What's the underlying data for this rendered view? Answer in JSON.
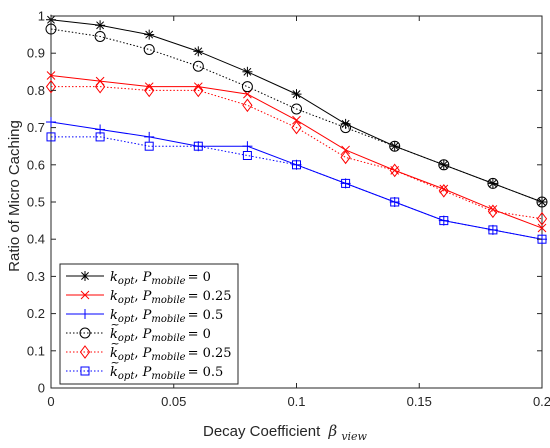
{
  "chart_data": {
    "type": "line",
    "title": "",
    "xlabel": "Decay Coefficient",
    "xlabel_symbol": "β",
    "xlabel_sub": "view",
    "ylabel": "Ratio of Micro Caching",
    "xlim": [
      0,
      0.2
    ],
    "ylim": [
      0,
      1
    ],
    "xticks": [
      0,
      0.05,
      0.1,
      0.15,
      0.2
    ],
    "xtick_labels": [
      "0",
      "0.05",
      "0.1",
      "0.15",
      "0.2"
    ],
    "yticks": [
      0,
      0.1,
      0.2,
      0.3,
      0.4,
      0.5,
      0.6,
      0.7,
      0.8,
      0.9,
      1
    ],
    "ytick_labels": [
      "0",
      "0.1",
      "0.2",
      "0.3",
      "0.4",
      "0.5",
      "0.6",
      "0.7",
      "0.8",
      "0.9",
      "1"
    ],
    "grid": false,
    "legend_position": "bottom-left",
    "x": [
      0,
      0.02,
      0.04,
      0.06,
      0.08,
      0.1,
      0.12,
      0.14,
      0.16,
      0.18,
      0.2
    ],
    "series": [
      {
        "name": "k_opt, P_mobile = 0",
        "legend_var": "k",
        "legend_tilde": false,
        "legend_p": "0",
        "color": "#000000",
        "dash": "solid",
        "marker": "asterisk",
        "values": [
          0.99,
          0.975,
          0.95,
          0.905,
          0.85,
          0.79,
          0.71,
          0.65,
          0.6,
          0.55,
          0.5
        ]
      },
      {
        "name": "k_opt, P_mobile = 0.25",
        "legend_var": "k",
        "legend_tilde": false,
        "legend_p": "0.25",
        "color": "#ff0000",
        "dash": "solid",
        "marker": "x",
        "values": [
          0.84,
          0.825,
          0.81,
          0.81,
          0.79,
          0.72,
          0.64,
          0.585,
          0.535,
          0.48,
          0.43
        ]
      },
      {
        "name": "k_opt, P_mobile = 0.5",
        "legend_var": "k",
        "legend_tilde": false,
        "legend_p": "0.5",
        "color": "#0000ff",
        "dash": "solid",
        "marker": "plus",
        "values": [
          0.715,
          0.695,
          0.675,
          0.65,
          0.65,
          0.6,
          0.55,
          0.5,
          0.45,
          0.425,
          0.4
        ]
      },
      {
        "name": "k̃_opt, P_mobile = 0",
        "legend_var": "k",
        "legend_tilde": true,
        "legend_p": "0",
        "color": "#000000",
        "dash": "dotted",
        "marker": "circle",
        "values": [
          0.965,
          0.945,
          0.91,
          0.865,
          0.81,
          0.75,
          0.7,
          0.65,
          0.6,
          0.55,
          0.5
        ]
      },
      {
        "name": "k̃_opt, P_mobile = 0.25",
        "legend_var": "k",
        "legend_tilde": true,
        "legend_p": "0.25",
        "color": "#ff0000",
        "dash": "dotted",
        "marker": "diamond",
        "values": [
          0.81,
          0.81,
          0.8,
          0.8,
          0.76,
          0.7,
          0.62,
          0.585,
          0.53,
          0.475,
          0.455
        ]
      },
      {
        "name": "k̃_opt, P_mobile = 0.5",
        "legend_var": "k",
        "legend_tilde": true,
        "legend_p": "0.5",
        "color": "#0000ff",
        "dash": "dotted",
        "marker": "square",
        "values": [
          0.675,
          0.675,
          0.65,
          0.65,
          0.625,
          0.6,
          0.55,
          0.5,
          0.45,
          0.425,
          0.4
        ]
      }
    ],
    "legend_sub_opt": "opt",
    "legend_var_p": "P",
    "legend_sub_mobile": "mobile",
    "legend_eq": "= "
  }
}
